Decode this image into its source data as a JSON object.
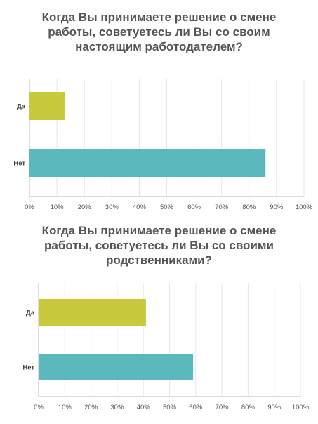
{
  "chart_data": [
    {
      "type": "bar",
      "orientation": "horizontal",
      "title_lines": [
        "Когда Вы принимаете решение о смене",
        "работы, советуетесь ли Вы со своим",
        "настоящим работодателем?"
      ],
      "categories": [
        "Да",
        "Нет"
      ],
      "values": [
        13,
        86
      ],
      "colors": [
        "#c8c93c",
        "#5bb8bd"
      ],
      "xlim": [
        0,
        100
      ],
      "ticks": [
        "0%",
        "10%",
        "20%",
        "30%",
        "40%",
        "50%",
        "60%",
        "70%",
        "80%",
        "90%",
        "100%"
      ],
      "grid": true
    },
    {
      "type": "bar",
      "orientation": "horizontal",
      "title_lines": [
        "Когда Вы принимаете решение о смене",
        "работы, советуетесь ли Вы со своими",
        "родственниками?"
      ],
      "categories": [
        "Да",
        "Нет"
      ],
      "values": [
        41,
        59
      ],
      "colors": [
        "#c8c93c",
        "#5bb8bd"
      ],
      "xlim": [
        0,
        100
      ],
      "ticks": [
        "0%",
        "10%",
        "20%",
        "30%",
        "40%",
        "50%",
        "60%",
        "70%",
        "80%",
        "90%",
        "100%"
      ],
      "grid": true
    }
  ]
}
